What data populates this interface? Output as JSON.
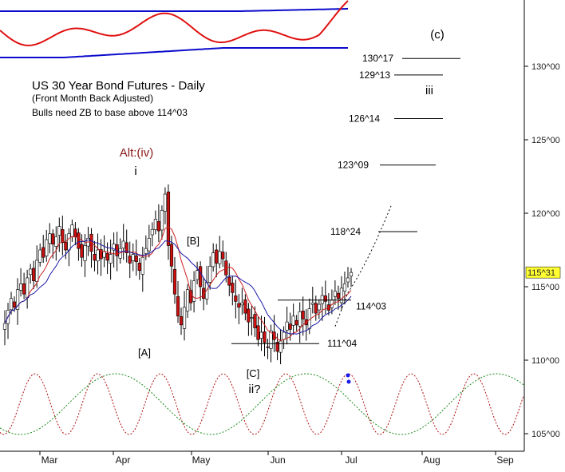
{
  "chart_data": {
    "type": "candlestick",
    "title": "US 30 Year Bond Futures - Daily",
    "subtitle": "(Front Month Back Adjusted)",
    "note": "Bulls need ZB to base above 114^03",
    "y_ticks": [
      "105^00",
      "110^00",
      "115^00",
      "120^00",
      "125^00",
      "130^00"
    ],
    "y_tick_values": [
      105,
      110,
      115,
      120,
      125,
      130
    ],
    "ylim": [
      103.2,
      134.5
    ],
    "x_months": [
      "Mar",
      "Apr",
      "May",
      "Jun",
      "Jul",
      "Aug",
      "Sep"
    ],
    "current_price_label": "115^31",
    "current_price": 115.97,
    "levels": [
      {
        "label": "130^17",
        "value": 130.53
      },
      {
        "label": "129^13",
        "value": 129.41
      },
      {
        "label": "126^14",
        "value": 126.44
      },
      {
        "label": "123^09",
        "value": 123.28
      },
      {
        "label": "118^24",
        "value": 118.75
      },
      {
        "label": "114^03",
        "value": 114.09
      },
      {
        "label": "111^04",
        "value": 111.13
      }
    ],
    "wave_labels": [
      {
        "text": "Alt:(iv)",
        "color": "#8b1a1a"
      },
      {
        "text": "i",
        "color": "#000000"
      },
      {
        "text": "[A]",
        "color": "#000000"
      },
      {
        "text": "[B]",
        "color": "#000000"
      },
      {
        "text": "[C]",
        "color": "#000000"
      },
      {
        "text": "ii?",
        "color": "#000000"
      },
      {
        "text": "iii",
        "color": "#000000"
      },
      {
        "text": "(c)",
        "color": "#000000"
      }
    ],
    "series_close": [
      112.5,
      113.4,
      114.2,
      113.6,
      114.8,
      115.2,
      114.5,
      115.6,
      116.2,
      115.4,
      116.8,
      117.5,
      117.0,
      118.2,
      118.6,
      117.9,
      118.4,
      119.1,
      118.0,
      117.5,
      118.6,
      119.2,
      118.4,
      117.6,
      117.0,
      117.8,
      118.3,
      117.4,
      116.8,
      117.5,
      116.9,
      117.4,
      116.8,
      117.2,
      117.9,
      117.1,
      117.6,
      118.1,
      117.3,
      116.6,
      117.2,
      116.7,
      116.1,
      117.0,
      117.6,
      118.3,
      118.9,
      119.6,
      118.8,
      120.2,
      121.3,
      117.8,
      116.4,
      114.5,
      113.0,
      112.4,
      113.6,
      114.8,
      113.9,
      115.4,
      116.1,
      115.0,
      114.2,
      115.3,
      116.4,
      117.3,
      116.6,
      117.4,
      116.9,
      115.8,
      115.1,
      114.6,
      114.0,
      113.6,
      113.9,
      113.2,
      112.6,
      112.9,
      112.2,
      111.4,
      111.9,
      111.2,
      110.9,
      112.0,
      111.4,
      110.6,
      111.3,
      111.9,
      112.6,
      112.1,
      113.0,
      112.4,
      113.3,
      112.8,
      112.4,
      113.5,
      113.9,
      113.2,
      113.8,
      114.4,
      114.0,
      113.4,
      114.1,
      114.7,
      114.2,
      114.9,
      115.2,
      115.6,
      115.97
    ],
    "colors": {
      "up_candle": "#ffffff",
      "down_candle": "#cc1111",
      "candle_outline": "#000000",
      "ma_red": "#cc2222",
      "ma_blue": "#1a1aaa",
      "oscillator": "#e01010",
      "bands": "#0a0acc",
      "cycle_red": "#b01010",
      "cycle_green": "#1a8a1a",
      "price_box": "#ffff33",
      "projection": "#000000"
    }
  }
}
